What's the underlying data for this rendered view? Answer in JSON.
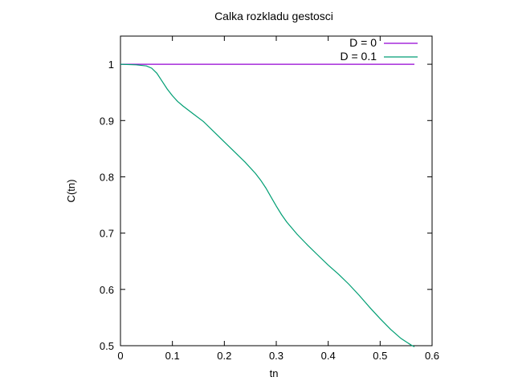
{
  "chart_data": {
    "type": "line",
    "title": "Calka rozkladu gestosci",
    "xlabel": "tn",
    "ylabel": "C(tn)",
    "xlim": [
      0,
      0.6
    ],
    "ylim": [
      0.5,
      1.05
    ],
    "x_ticks": [
      "0",
      "0.1",
      "0.2",
      "0.3",
      "0.4",
      "0.5",
      "0.6"
    ],
    "y_ticks": [
      "0.5",
      "0.6",
      "0.7",
      "0.8",
      "0.9",
      "1"
    ],
    "x_tick_values": [
      0,
      0.1,
      0.2,
      0.3,
      0.4,
      0.5,
      0.6
    ],
    "y_tick_values": [
      0.5,
      0.6,
      0.7,
      0.8,
      0.9,
      1.0
    ],
    "grid": false,
    "legend_position": "top-right",
    "series": [
      {
        "name": "D = 0",
        "color": "#9400d3",
        "x": [
          0,
          0.566
        ],
        "y": [
          1.0,
          1.0
        ]
      },
      {
        "name": "D = 0.1",
        "color": "#009e73",
        "x": [
          0,
          0.03,
          0.05,
          0.06,
          0.07,
          0.08,
          0.09,
          0.1,
          0.11,
          0.12,
          0.14,
          0.16,
          0.18,
          0.2,
          0.22,
          0.24,
          0.26,
          0.27,
          0.28,
          0.29,
          0.3,
          0.31,
          0.32,
          0.34,
          0.36,
          0.38,
          0.4,
          0.42,
          0.44,
          0.46,
          0.48,
          0.5,
          0.52,
          0.54,
          0.56,
          0.566
        ],
        "y": [
          1.0,
          0.999,
          0.997,
          0.993,
          0.984,
          0.97,
          0.956,
          0.944,
          0.934,
          0.926,
          0.912,
          0.898,
          0.88,
          0.862,
          0.844,
          0.826,
          0.806,
          0.794,
          0.78,
          0.764,
          0.748,
          0.733,
          0.72,
          0.698,
          0.679,
          0.661,
          0.643,
          0.627,
          0.609,
          0.589,
          0.568,
          0.548,
          0.529,
          0.513,
          0.501,
          0.498
        ]
      }
    ]
  }
}
